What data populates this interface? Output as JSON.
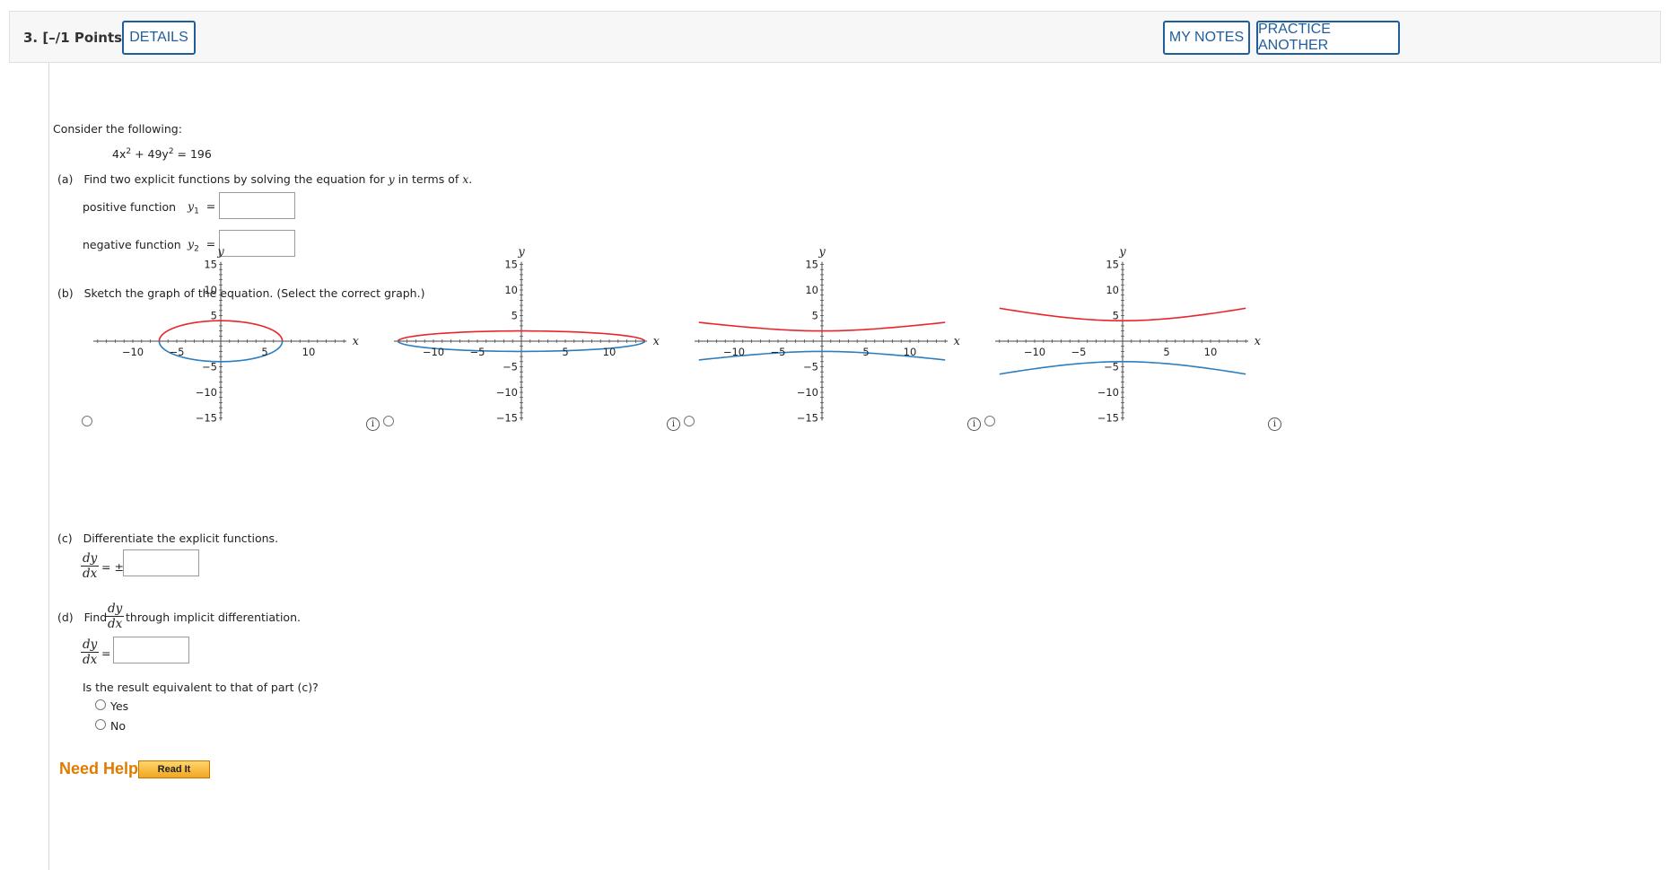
{
  "header": {
    "question": "3.  [–/1 Points]",
    "details_label": "DETAILS",
    "my_notes_label": "MY NOTES",
    "practice_label": "PRACTICE ANOTHER"
  },
  "prompt": "Consider the following:",
  "equation": {
    "a": "4x",
    "b": "2",
    "c": " + 49y",
    "d": "2",
    "e": " = 196"
  },
  "part_a": {
    "letter": "(a)",
    "instruction_pre": "Find two explicit functions by solving the equation for ",
    "var_y": "y",
    "instruction_mid": " in terms of ",
    "var_x": "x",
    "instruction_end": ".",
    "pos_label": "positive function",
    "neg_label": "negative function",
    "y1": "y",
    "y1_sub": "1",
    "y2": "y",
    "y2_sub": "2",
    "eq": "=",
    "y1_value": "",
    "y2_value": ""
  },
  "part_b": {
    "letter": "(b)",
    "instruction": "Sketch the graph of the equation. (Select the correct graph.)",
    "axis_x_label": "x",
    "axis_y_label": "y",
    "x_ticks": [
      "−10",
      "−5",
      "5",
      "10"
    ],
    "y_ticks": [
      "15",
      "10",
      "5",
      "−5",
      "−10",
      "−15"
    ],
    "graphs": [
      {
        "shape": "ellipse",
        "x_semi": 7,
        "y_semi": 4
      },
      {
        "shape": "ellipse",
        "x_semi": 14,
        "y_semi": 2
      },
      {
        "shape": "hyperbola",
        "vertex": 2
      },
      {
        "shape": "hyperbola",
        "vertex": 4
      }
    ],
    "info_glyph": "i",
    "colors": {
      "upper": "#e8262a",
      "lower": "#2b7fc1",
      "axis": "#444444"
    }
  },
  "part_c": {
    "letter": "(c)",
    "instruction": "Differentiate the explicit functions.",
    "dy": "dy",
    "dx": "dx",
    "eq_pm": "= ±",
    "answer": ""
  },
  "part_d": {
    "letter": "(d)",
    "find": "Find",
    "instruction_end": "through implicit differentiation.",
    "dy": "dy",
    "dx": "dx",
    "eq": "=",
    "answer": "",
    "question": "Is the result equivalent to that of part (c)?",
    "options": [
      "Yes",
      "No"
    ]
  },
  "help": {
    "need_help": "Need Help?",
    "read_it": "Read It"
  }
}
